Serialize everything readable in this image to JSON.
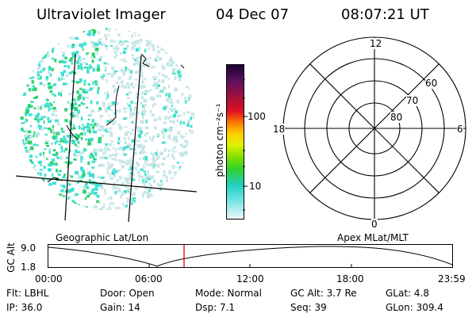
{
  "header": {
    "title": "Ultraviolet Imager",
    "date": "04 Dec 07",
    "time": "08:07:21 UT"
  },
  "colorbar": {
    "unit_label": "photon cm⁻²s⁻¹",
    "ticks": [
      "100",
      "10"
    ]
  },
  "polar": {
    "mlt_labels": {
      "top": "12",
      "left": "18",
      "right": "6",
      "bottom": "0"
    },
    "lat_labels": [
      "60",
      "70",
      "80"
    ]
  },
  "captions": {
    "left": "Geographic Lat/Lon",
    "right": "Apex MLat/MLT"
  },
  "orbit": {
    "ylabel": "GC Alt",
    "yticks": [
      "9.0",
      "1.8"
    ],
    "xticks": [
      "00:00",
      "06:00",
      "12:00",
      "18:00",
      "23:59"
    ]
  },
  "info": {
    "flt": "Flt: LBHL",
    "door": "Door: Open",
    "mode": "Mode: Normal",
    "gcalt": "GC Alt: 3.7 Re",
    "glat": "GLat:    4.8",
    "ip": "IP: 36.0",
    "gain": "Gain: 14",
    "dsp": "Dsp:      7.1",
    "seq": "Seq: 39",
    "glon": "GLon: 309.4"
  },
  "colors": {
    "speckle_a": "#c8e6e6",
    "speckle_b": "#40e0d0",
    "speckle_c": "#30d070",
    "marker": "#e00000"
  }
}
